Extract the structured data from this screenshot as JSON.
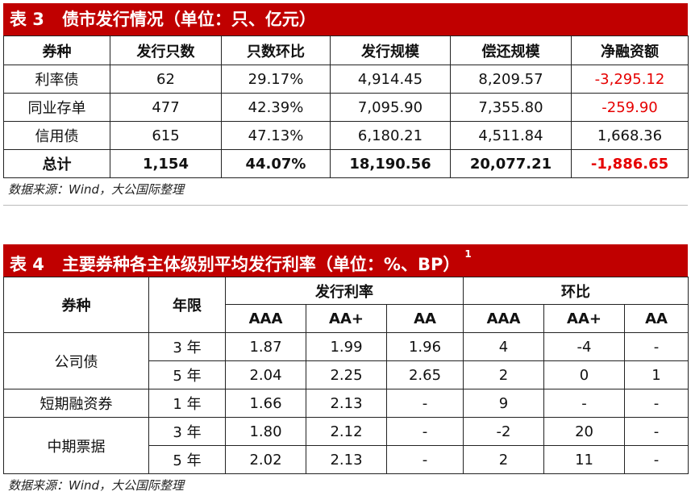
{
  "table3": {
    "label": "表 3",
    "title": "债市发行情况（单位：只、亿元）",
    "headers": [
      "券种",
      "发行只数",
      "只数环比",
      "发行规模",
      "偿还规模",
      "净融资额"
    ],
    "rows": [
      [
        "利率债",
        "62",
        "29.17%",
        "4,914.45",
        "8,209.57",
        "-3,295.12"
      ],
      [
        "同业存单",
        "477",
        "42.39%",
        "7,095.90",
        "7,355.80",
        "-259.90"
      ],
      [
        "信用债",
        "615",
        "47.13%",
        "6,180.21",
        "4,511.84",
        "1,668.36"
      ]
    ],
    "total": [
      "总计",
      "1,154",
      "44.07%",
      "18,190.56",
      "20,077.21",
      "-1,886.65"
    ],
    "source": "数据来源：Wind，大公国际整理"
  },
  "table4": {
    "label": "表 4",
    "title": "主要券种各主体级别平均发行利率（单位：%、BP）",
    "footnote": "1",
    "headers": {
      "type": "券种",
      "term": "年限",
      "rate_group": "发行利率",
      "change_group": "环比",
      "grades": [
        "AAA",
        "AA+",
        "AA"
      ]
    },
    "groups": [
      {
        "name": "公司债",
        "rows": [
          {
            "term": "3 年",
            "rate": [
              "1.87",
              "1.99",
              "1.96"
            ],
            "change": [
              "4",
              "-4",
              "-"
            ]
          },
          {
            "term": "5 年",
            "rate": [
              "2.04",
              "2.25",
              "2.65"
            ],
            "change": [
              "2",
              "0",
              "1"
            ]
          }
        ]
      },
      {
        "name": "短期融资券",
        "rows": [
          {
            "term": "1 年",
            "rate": [
              "1.66",
              "2.13",
              "-"
            ],
            "change": [
              "9",
              "-",
              "-"
            ]
          }
        ]
      },
      {
        "name": "中期票据",
        "rows": [
          {
            "term": "3 年",
            "rate": [
              "1.80",
              "2.12",
              "-"
            ],
            "change": [
              "-2",
              "20",
              "-"
            ]
          },
          {
            "term": "5 年",
            "rate": [
              "2.02",
              "2.13",
              "-"
            ],
            "change": [
              "2",
              "11",
              "-"
            ]
          }
        ]
      }
    ],
    "source": "数据来源：Wind，大公国际整理"
  },
  "colors": {
    "title_bg": "#c00000",
    "negative": "#e60000"
  }
}
